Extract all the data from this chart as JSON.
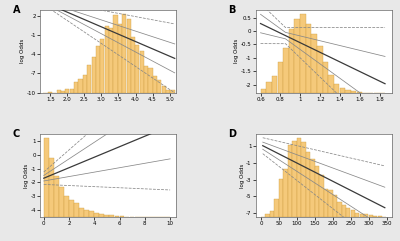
{
  "bar_color": "#F5C97A",
  "bar_edge_color": "#C8973A",
  "line_color": "#3a3a3a",
  "ci_color": "#888888",
  "bg_color": "#ffffff",
  "fig_bg": "#e8e8e8",
  "panels": [
    {
      "label": "A",
      "xlim": [
        1.2,
        5.2
      ],
      "ylim": [
        -10,
        3
      ],
      "yticks": [
        -10,
        -7,
        -4,
        -1,
        2
      ],
      "xticks": [
        1.5,
        2.0,
        2.5,
        3.0,
        3.5,
        4.0,
        4.5,
        5.0
      ],
      "hist_range": [
        1.3,
        5.15
      ],
      "hist_bins": 30,
      "hist_type": "normal",
      "hist_mean": 3.5,
      "hist_std": 0.6,
      "hist_n": 4000,
      "curve_x0": 1.3,
      "curve_x1": 5.15
    },
    {
      "label": "B",
      "xlim": [
        0.55,
        1.92
      ],
      "ylim": [
        -2.3,
        0.8
      ],
      "yticks": [
        -2.0,
        -1.5,
        -1.0,
        -0.5,
        0.0,
        0.5
      ],
      "xticks": [
        0.6,
        0.8,
        1.0,
        1.2,
        1.4,
        1.6,
        1.8
      ],
      "hist_range": [
        0.6,
        1.85
      ],
      "hist_bins": 22,
      "hist_type": "normal",
      "hist_mean": 1.03,
      "hist_std": 0.165,
      "hist_n": 4000,
      "curve_x0": 0.6,
      "curve_x1": 1.85
    },
    {
      "label": "C",
      "xlim": [
        -0.3,
        10.5
      ],
      "ylim": [
        -4.5,
        1.5
      ],
      "yticks": [
        -4,
        -3,
        -2,
        -1,
        0,
        1
      ],
      "xticks": [
        0,
        2,
        4,
        6,
        8,
        10
      ],
      "hist_range": [
        0,
        10
      ],
      "hist_bins": 25,
      "hist_type": "exponential",
      "hist_scale": 1.3,
      "hist_n": 4000,
      "curve_x0": 0,
      "curve_x1": 10
    },
    {
      "label": "D",
      "xlim": [
        -15,
        365
      ],
      "ylim": [
        -7.5,
        2.5
      ],
      "yticks": [
        -7,
        -5,
        -3,
        -1,
        1
      ],
      "xticks": [
        0,
        50,
        100,
        150,
        200,
        250,
        300,
        350
      ],
      "hist_range": [
        0,
        350
      ],
      "hist_bins": 28,
      "hist_type": "gamma",
      "hist_shape": 5.5,
      "hist_scale": 23,
      "hist_n": 5000,
      "curve_x0": 5,
      "curve_x1": 345
    }
  ]
}
